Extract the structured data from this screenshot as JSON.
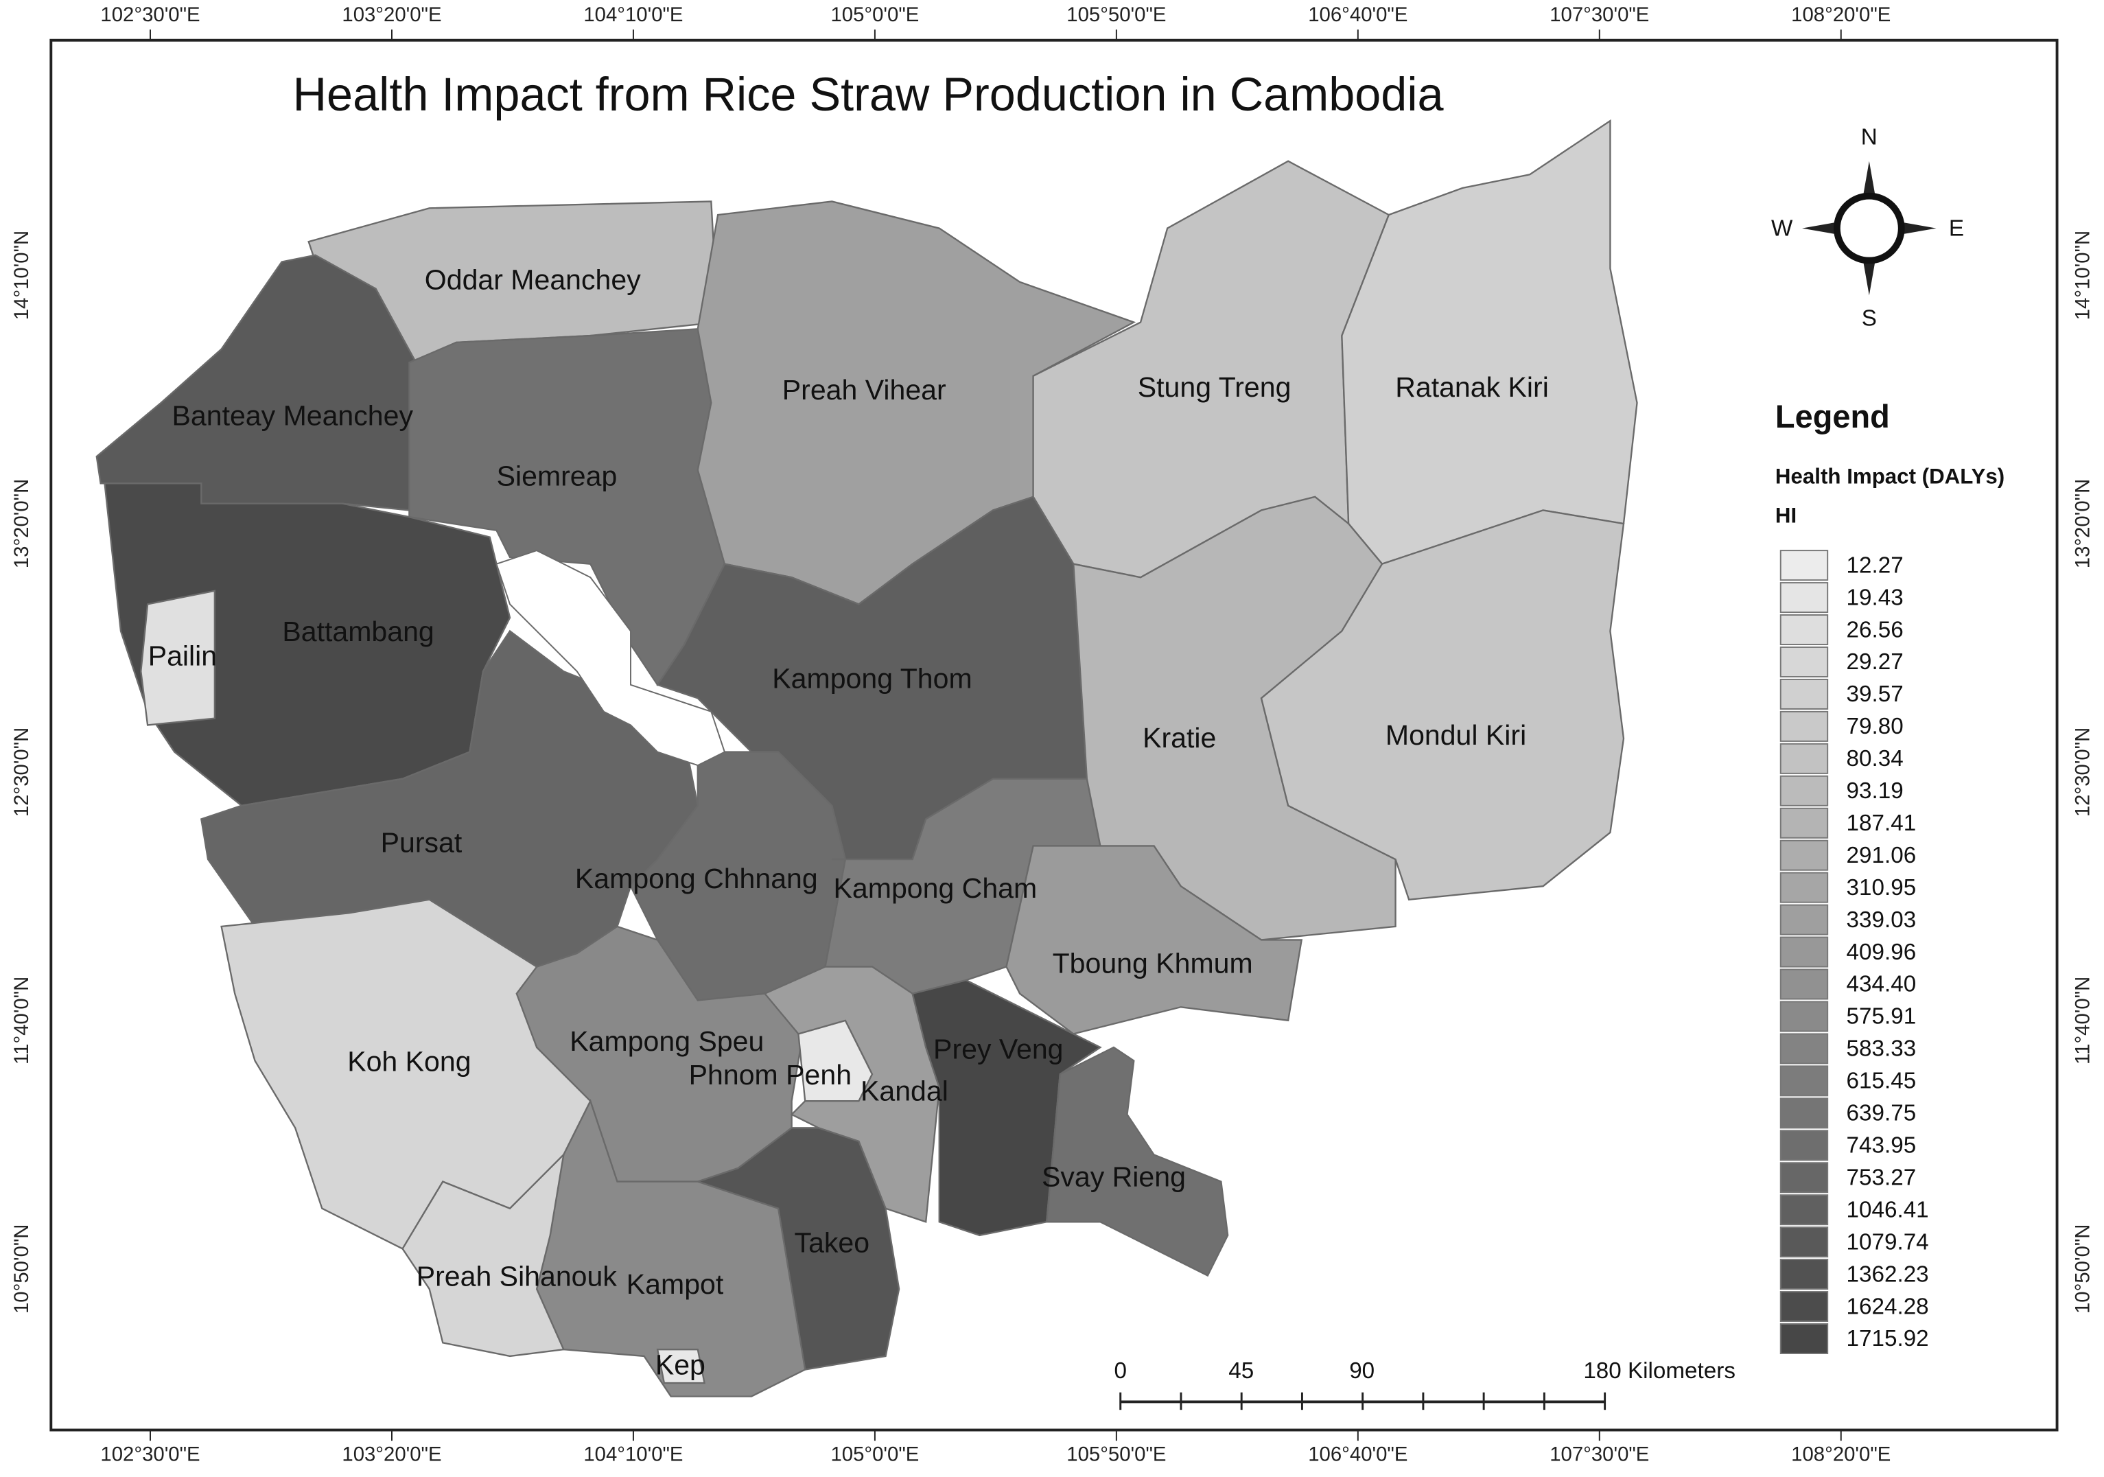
{
  "map": {
    "title": "Health Impact from Rice Straw Production in Cambodia",
    "longitude_labels": [
      "102°30'0\"E",
      "103°20'0\"E",
      "104°10'0\"E",
      "105°0'0\"E",
      "105°50'0\"E",
      "106°40'0\"E",
      "107°30'0\"E",
      "108°20'0\"E"
    ],
    "latitude_labels": [
      "14°10'0\"N",
      "13°20'0\"N",
      "12°30'0\"N",
      "11°40'0\"N",
      "10°50'0\"N"
    ],
    "provinces": [
      "Oddar Meanchey",
      "Banteay Meanchey",
      "Siemreap",
      "Preah Vihear",
      "Stung Treng",
      "Ratanak Kiri",
      "Battambang",
      "Pailin",
      "Kampong Thom",
      "Pursat",
      "Kampong Chhnang",
      "Kampong Cham",
      "Kratie",
      "Mondul Kiri",
      "Tboung Khmum",
      "Koh Kong",
      "Kampong Speu",
      "Phnom Penh",
      "Kandal",
      "Prey Veng",
      "Svay Rieng",
      "Takeo",
      "Kampot",
      "Preah Sihanouk",
      "Kep"
    ],
    "legend": {
      "title": "Legend",
      "subtitle": "Health Impact (DALYs)",
      "field": "HI",
      "items": [
        {
          "label": "12.27",
          "color": "#ececec"
        },
        {
          "label": "19.43",
          "color": "#e5e5e5"
        },
        {
          "label": "26.56",
          "color": "#dedede"
        },
        {
          "label": "29.27",
          "color": "#d7d7d7"
        },
        {
          "label": "39.57",
          "color": "#d0d0d0"
        },
        {
          "label": "79.80",
          "color": "#c9c9c9"
        },
        {
          "label": "80.34",
          "color": "#c2c2c2"
        },
        {
          "label": "93.19",
          "color": "#bbbbbb"
        },
        {
          "label": "187.41",
          "color": "#b4b4b4"
        },
        {
          "label": "291.06",
          "color": "#adadad"
        },
        {
          "label": "310.95",
          "color": "#a6a6a6"
        },
        {
          "label": "339.03",
          "color": "#9f9f9f"
        },
        {
          "label": "409.96",
          "color": "#989898"
        },
        {
          "label": "434.40",
          "color": "#919191"
        },
        {
          "label": "575.91",
          "color": "#8a8a8a"
        },
        {
          "label": "583.33",
          "color": "#838383"
        },
        {
          "label": "615.45",
          "color": "#7c7c7c"
        },
        {
          "label": "639.75",
          "color": "#757575"
        },
        {
          "label": "743.95",
          "color": "#6e6e6e"
        },
        {
          "label": "753.27",
          "color": "#676767"
        },
        {
          "label": "1046.41",
          "color": "#606060"
        },
        {
          "label": "1079.74",
          "color": "#595959"
        },
        {
          "label": "1362.23",
          "color": "#525252"
        },
        {
          "label": "1624.28",
          "color": "#4c4c4c"
        },
        {
          "label": "1715.92",
          "color": "#474747"
        }
      ]
    },
    "compass": {
      "north": "N",
      "east": "E",
      "south": "S",
      "west": "W"
    },
    "scale_bar": [
      "0",
      "45",
      "90",
      "180 Kilometers"
    ]
  }
}
